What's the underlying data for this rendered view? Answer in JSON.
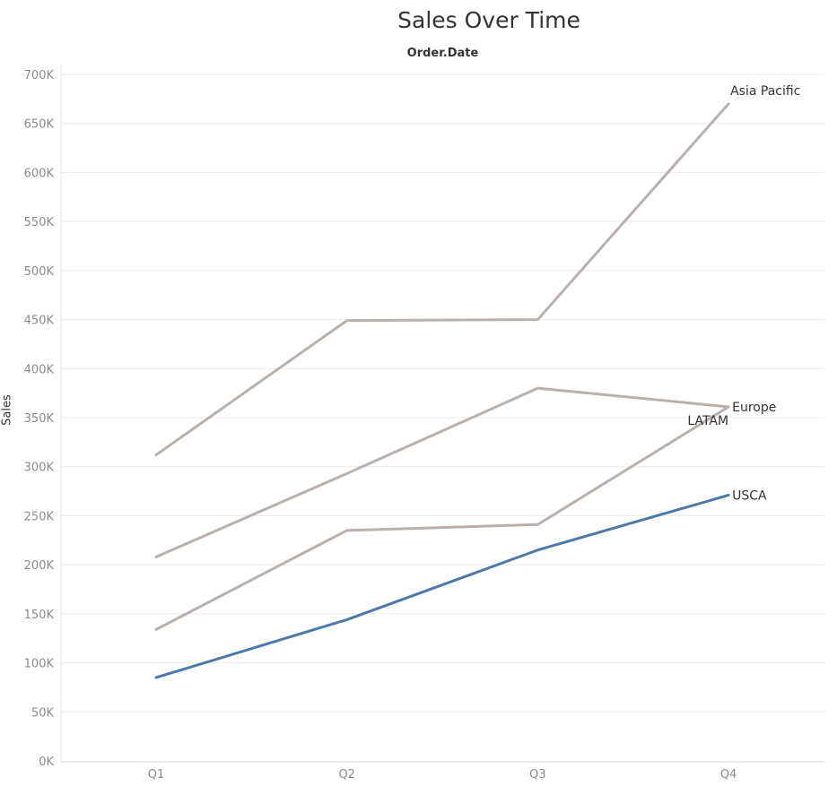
{
  "chart_data": {
    "type": "line",
    "title": "Sales Over Time",
    "xlabel": "Order.Date",
    "ylabel": "Sales",
    "categories": [
      "Q1",
      "Q2",
      "Q3",
      "Q4"
    ],
    "ylim": [
      0,
      700000
    ],
    "yticks": [
      {
        "value": 0,
        "label": "0K"
      },
      {
        "value": 50000,
        "label": "50K"
      },
      {
        "value": 100000,
        "label": "100K"
      },
      {
        "value": 150000,
        "label": "150K"
      },
      {
        "value": 200000,
        "label": "200K"
      },
      {
        "value": 250000,
        "label": "250K"
      },
      {
        "value": 300000,
        "label": "300K"
      },
      {
        "value": 350000,
        "label": "350K"
      },
      {
        "value": 400000,
        "label": "400K"
      },
      {
        "value": 450000,
        "label": "450K"
      },
      {
        "value": 500000,
        "label": "500K"
      },
      {
        "value": 550000,
        "label": "550K"
      },
      {
        "value": 600000,
        "label": "600K"
      },
      {
        "value": 650000,
        "label": "650K"
      },
      {
        "value": 700000,
        "label": "700K"
      }
    ],
    "grid": true,
    "legend": "none",
    "series": [
      {
        "name": "Asia Pacific",
        "values": [
          312000,
          449000,
          450000,
          670000
        ],
        "color": "#bab0ac",
        "label_position": "top-right"
      },
      {
        "name": "Europe",
        "values": [
          208000,
          293000,
          380000,
          361000
        ],
        "color": "#bab0ac",
        "label_position": "right"
      },
      {
        "name": "LATAM",
        "values": [
          134000,
          235000,
          241000,
          361000
        ],
        "color": "#bab0ac",
        "label_position": "left-below"
      },
      {
        "name": "USCA",
        "values": [
          85000,
          144000,
          215000,
          271000
        ],
        "color": "#4e79a7",
        "label_position": "right"
      }
    ]
  }
}
